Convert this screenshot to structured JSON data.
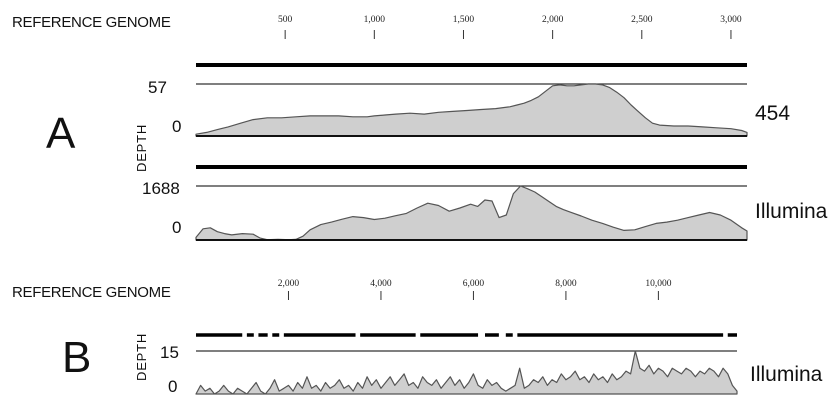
{
  "chart_data": [
    {
      "type": "area",
      "panel_label": "A",
      "reference_label": "REFERENCE GENOME",
      "x_ticks": [
        500,
        1000,
        1500,
        2000,
        2500,
        3000
      ],
      "x_tick_labels": [
        "500",
        "1,000",
        "1,500",
        "2,000",
        "2,500",
        "3,000"
      ],
      "xlim": [
        0,
        3090
      ],
      "ylabel": "DEPTH",
      "series": [
        {
          "name": "454",
          "ymax_label": "57",
          "ymin_label": "0",
          "ylim": [
            0,
            57
          ],
          "coverage_bar": "continuous",
          "x": [
            0,
            60,
            120,
            180,
            250,
            320,
            400,
            480,
            560,
            640,
            720,
            800,
            880,
            960,
            1000,
            1060,
            1120,
            1200,
            1280,
            1360,
            1440,
            1520,
            1600,
            1680,
            1760,
            1800,
            1840,
            1880,
            1920,
            1960,
            2000,
            2040,
            2080,
            2120,
            2160,
            2200,
            2240,
            2280,
            2320,
            2360,
            2400,
            2440,
            2480,
            2520,
            2560,
            2600,
            2680,
            2760,
            2840,
            2920,
            3000,
            3060,
            3090
          ],
          "values": [
            2,
            4,
            7,
            10,
            14,
            18,
            20,
            20,
            21,
            22,
            22,
            22,
            21,
            21,
            22,
            23,
            24,
            25,
            24,
            26,
            27,
            28,
            29,
            30,
            32,
            34,
            36,
            39,
            43,
            49,
            55,
            56,
            55,
            55,
            56,
            57,
            57,
            56,
            53,
            48,
            42,
            34,
            27,
            20,
            14,
            12,
            11,
            11,
            10,
            9,
            8,
            6,
            4
          ]
        },
        {
          "name": "Illumina",
          "ymax_label": "1688",
          "ymin_label": "0",
          "ylim": [
            0,
            1688
          ],
          "coverage_bar": "continuous",
          "x": [
            0,
            40,
            80,
            120,
            160,
            200,
            260,
            320,
            360,
            400,
            460,
            520,
            560,
            600,
            640,
            700,
            760,
            820,
            880,
            940,
            1000,
            1060,
            1120,
            1180,
            1240,
            1300,
            1360,
            1420,
            1480,
            1540,
            1580,
            1620,
            1660,
            1700,
            1740,
            1780,
            1820,
            1860,
            1900,
            1940,
            1980,
            2020,
            2060,
            2100,
            2160,
            2220,
            2280,
            2340,
            2400,
            2460,
            2520,
            2580,
            2640,
            2700,
            2760,
            2820,
            2880,
            2940,
            3000,
            3060,
            3090
          ],
          "values": [
            80,
            350,
            380,
            260,
            200,
            160,
            200,
            180,
            60,
            10,
            20,
            10,
            20,
            120,
            320,
            480,
            560,
            650,
            730,
            700,
            640,
            680,
            760,
            830,
            1000,
            1150,
            1080,
            900,
            1000,
            1120,
            1050,
            1250,
            1220,
            700,
            780,
            1450,
            1688,
            1600,
            1500,
            1350,
            1200,
            1050,
            950,
            870,
            750,
            620,
            520,
            400,
            300,
            320,
            420,
            520,
            560,
            620,
            700,
            780,
            860,
            780,
            620,
            380,
            280
          ]
        }
      ]
    },
    {
      "type": "area",
      "panel_label": "B",
      "reference_label": "REFERENCE GENOME",
      "x_ticks": [
        2000,
        4000,
        6000,
        8000,
        10000
      ],
      "x_tick_labels": [
        "2,000",
        "4,000",
        "6,000",
        "8,000",
        "10,000"
      ],
      "xlim": [
        0,
        11700
      ],
      "ylabel": "DEPTH",
      "series": [
        {
          "name": "Illumina",
          "ymax_label": "15",
          "ymin_label": "0",
          "ylim": [
            0,
            15
          ],
          "coverage_bar_segments": [
            [
              0,
              1000
            ],
            [
              1100,
              1250
            ],
            [
              1350,
              1550
            ],
            [
              1650,
              1800
            ],
            [
              1900,
              3450
            ],
            [
              3550,
              4750
            ],
            [
              4850,
              6100
            ],
            [
              6250,
              6550
            ],
            [
              6700,
              6850
            ],
            [
              6950,
              11400
            ],
            [
              11500,
              11700
            ]
          ],
          "x": [
            0,
            100,
            200,
            300,
            400,
            500,
            600,
            700,
            800,
            900,
            1000,
            1100,
            1200,
            1300,
            1400,
            1500,
            1600,
            1700,
            1800,
            1900,
            2000,
            2100,
            2200,
            2300,
            2400,
            2500,
            2600,
            2700,
            2800,
            2900,
            3000,
            3100,
            3200,
            3300,
            3400,
            3500,
            3600,
            3700,
            3800,
            3900,
            4000,
            4100,
            4200,
            4300,
            4400,
            4500,
            4600,
            4700,
            4800,
            4900,
            5000,
            5100,
            5200,
            5300,
            5400,
            5500,
            5600,
            5700,
            5800,
            5900,
            6000,
            6100,
            6200,
            6300,
            6400,
            6500,
            6600,
            6700,
            6800,
            6900,
            7000,
            7100,
            7200,
            7300,
            7400,
            7500,
            7600,
            7700,
            7800,
            7900,
            8000,
            8100,
            8200,
            8300,
            8400,
            8500,
            8600,
            8700,
            8800,
            8900,
            9000,
            9100,
            9200,
            9300,
            9400,
            9500,
            9600,
            9700,
            9800,
            9900,
            10000,
            10100,
            10200,
            10300,
            10400,
            10500,
            10600,
            10700,
            10800,
            10900,
            11000,
            11100,
            11200,
            11300,
            11400,
            11500,
            11600,
            11700
          ],
          "values": [
            0,
            3,
            1,
            2,
            0,
            1,
            3,
            1,
            0,
            2,
            1,
            0,
            2,
            4,
            1,
            0,
            2,
            5,
            1,
            2,
            3,
            1,
            4,
            2,
            6,
            2,
            3,
            1,
            4,
            2,
            3,
            5,
            2,
            3,
            1,
            4,
            2,
            6,
            3,
            5,
            2,
            4,
            6,
            3,
            5,
            7,
            3,
            4,
            2,
            6,
            4,
            3,
            5,
            2,
            4,
            6,
            3,
            5,
            2,
            4,
            7,
            3,
            2,
            5,
            3,
            4,
            2,
            1,
            2,
            3,
            9,
            2,
            3,
            5,
            4,
            6,
            3,
            5,
            4,
            7,
            5,
            6,
            8,
            5,
            6,
            4,
            7,
            5,
            6,
            4,
            7,
            5,
            6,
            8,
            7,
            15,
            9,
            8,
            10,
            7,
            9,
            8,
            6,
            9,
            8,
            7,
            9,
            8,
            6,
            8,
            7,
            9,
            8,
            6,
            9,
            7,
            3,
            1
          ]
        }
      ]
    }
  ]
}
